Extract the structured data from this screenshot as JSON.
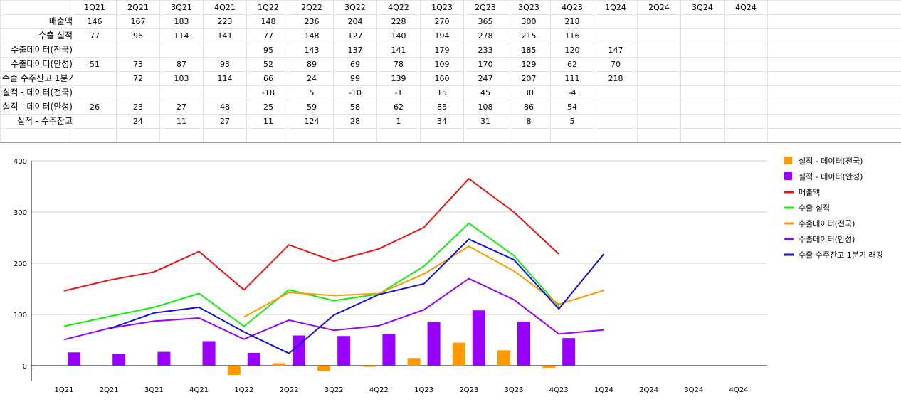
{
  "sheet": {
    "headers": [
      "1Q21",
      "2Q21",
      "3Q21",
      "4Q21",
      "1Q22",
      "2Q22",
      "3Q22",
      "4Q22",
      "1Q23",
      "2Q23",
      "3Q23",
      "4Q23",
      "1Q24",
      "2Q24",
      "3Q24",
      "4Q24"
    ],
    "rows": [
      {
        "label": "매출액",
        "values": [
          "146",
          "167",
          "183",
          "223",
          "148",
          "236",
          "204",
          "228",
          "270",
          "365",
          "300",
          "218",
          "",
          "",
          "",
          ""
        ]
      },
      {
        "label": "수출 실적",
        "values": [
          "77",
          "96",
          "114",
          "141",
          "77",
          "148",
          "127",
          "140",
          "194",
          "278",
          "215",
          "116",
          "",
          "",
          "",
          ""
        ]
      },
      {
        "label": "수출데이터(전국)",
        "values": [
          "",
          "",
          "",
          "",
          "95",
          "143",
          "137",
          "141",
          "179",
          "233",
          "185",
          "120",
          "147",
          "",
          "",
          ""
        ]
      },
      {
        "label": "수출데이터(안성)",
        "values": [
          "51",
          "73",
          "87",
          "93",
          "52",
          "89",
          "69",
          "78",
          "109",
          "170",
          "129",
          "62",
          "70",
          "",
          "",
          ""
        ]
      },
      {
        "label": "수출 수주잔고 1분기 래깅",
        "values": [
          "",
          "72",
          "103",
          "114",
          "66",
          "24",
          "99",
          "139",
          "160",
          "247",
          "207",
          "111",
          "218",
          "",
          "",
          ""
        ]
      },
      {
        "label": "실적 - 데이터(전국)",
        "values": [
          "",
          "",
          "",
          "",
          "-18",
          "5",
          "-10",
          "-1",
          "15",
          "45",
          "30",
          "-4",
          "",
          "",
          "",
          ""
        ]
      },
      {
        "label": "실적 - 데이터(안성)",
        "values": [
          "26",
          "23",
          "27",
          "48",
          "25",
          "59",
          "58",
          "62",
          "85",
          "108",
          "86",
          "54",
          "",
          "",
          "",
          ""
        ]
      },
      {
        "label": "실적 - 수주잔고",
        "values": [
          "",
          "24",
          "11",
          "27",
          "11",
          "124",
          "28",
          "1",
          "34",
          "31",
          "8",
          "5",
          "",
          "",
          "",
          ""
        ]
      }
    ]
  },
  "chart_data": {
    "type": "line",
    "categories": [
      "1Q21",
      "2Q21",
      "3Q21",
      "4Q21",
      "1Q22",
      "2Q22",
      "3Q22",
      "4Q22",
      "1Q23",
      "2Q23",
      "3Q23",
      "4Q23",
      "1Q24",
      "2Q24",
      "3Q24",
      "4Q24"
    ],
    "ylim": [
      -30,
      400
    ],
    "yticks": [
      "0",
      "100",
      "200",
      "300",
      "400"
    ],
    "grid": true,
    "legend_position": "right",
    "series": [
      {
        "name": "실적 - 데이터(전국)",
        "kind": "bar",
        "color": "#ff9900",
        "values": [
          null,
          null,
          null,
          null,
          -18,
          5,
          -10,
          -1,
          15,
          45,
          30,
          -4,
          null,
          null,
          null,
          null
        ]
      },
      {
        "name": "실적 - 데이터(안성)",
        "kind": "bar",
        "color": "#9900ff",
        "values": [
          26,
          23,
          27,
          48,
          25,
          59,
          58,
          62,
          85,
          108,
          86,
          54,
          null,
          null,
          null,
          null
        ]
      },
      {
        "name": "매출액",
        "kind": "line",
        "color": "#ee1111",
        "values": [
          146,
          167,
          183,
          223,
          148,
          236,
          204,
          228,
          270,
          365,
          300,
          218,
          null,
          null,
          null,
          null
        ]
      },
      {
        "name": "수출 실적",
        "kind": "line",
        "color": "#11ee11",
        "values": [
          77,
          96,
          114,
          141,
          77,
          148,
          127,
          140,
          194,
          278,
          215,
          116,
          null,
          null,
          null,
          null
        ]
      },
      {
        "name": "수출데이터(전국)",
        "kind": "line",
        "color": "#ff9900",
        "values": [
          null,
          null,
          null,
          null,
          95,
          143,
          137,
          141,
          179,
          233,
          185,
          120,
          147,
          null,
          null,
          null
        ]
      },
      {
        "name": "수출데이터(안성)",
        "kind": "line",
        "color": "#9900ff",
        "values": [
          51,
          73,
          87,
          93,
          52,
          89,
          69,
          78,
          109,
          170,
          129,
          62,
          70,
          null,
          null,
          null
        ]
      },
      {
        "name": "수출 수주잔고 1분기 래깅",
        "kind": "line",
        "color": "#1111dd",
        "values": [
          null,
          72,
          103,
          114,
          66,
          24,
          99,
          139,
          160,
          247,
          207,
          111,
          218,
          null,
          null,
          null
        ]
      }
    ]
  }
}
